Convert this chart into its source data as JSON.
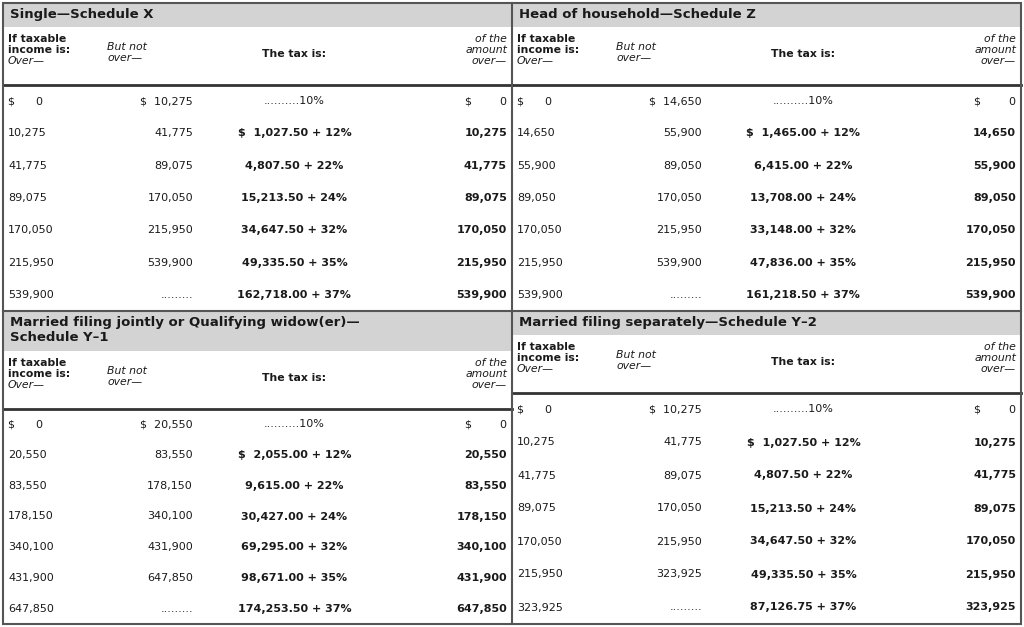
{
  "header_bg": "#d3d3d3",
  "white_bg": "#ffffff",
  "black": "#1a1a1a",
  "border_color": "#555555",
  "sep_color": "#333333",
  "sections": [
    {
      "title": "Single—Schedule X",
      "title_lines": 1,
      "rows": [
        [
          "$      0",
          "$  10,275",
          "..........10%",
          "$        0",
          false
        ],
        [
          "10,275",
          "41,775",
          "$  1,027.50 + 12%",
          "10,275",
          true
        ],
        [
          "41,775",
          "89,075",
          "4,807.50 + 22%",
          "41,775",
          true
        ],
        [
          "89,075",
          "170,050",
          "15,213.50 + 24%",
          "89,075",
          true
        ],
        [
          "170,050",
          "215,950",
          "34,647.50 + 32%",
          "170,050",
          true
        ],
        [
          "215,950",
          "539,900",
          "49,335.50 + 35%",
          "215,950",
          true
        ],
        [
          "539,900",
          ".........",
          "162,718.00 + 37%",
          "539,900",
          true
        ]
      ]
    },
    {
      "title": "Head of household—Schedule Z",
      "title_lines": 1,
      "rows": [
        [
          "$      0",
          "$  14,650",
          "..........10%",
          "$        0",
          false
        ],
        [
          "14,650",
          "55,900",
          "$  1,465.00 + 12%",
          "14,650",
          true
        ],
        [
          "55,900",
          "89,050",
          "6,415.00 + 22%",
          "55,900",
          true
        ],
        [
          "89,050",
          "170,050",
          "13,708.00 + 24%",
          "89,050",
          true
        ],
        [
          "170,050",
          "215,950",
          "33,148.00 + 32%",
          "170,050",
          true
        ],
        [
          "215,950",
          "539,900",
          "47,836.00 + 35%",
          "215,950",
          true
        ],
        [
          "539,900",
          ".........",
          "161,218.50 + 37%",
          "539,900",
          true
        ]
      ]
    },
    {
      "title": "Married filing jointly or Qualifying widow(er)—\nSchedule Y–1",
      "title_lines": 2,
      "rows": [
        [
          "$      0",
          "$  20,550",
          "..........10%",
          "$        0",
          false
        ],
        [
          "20,550",
          "83,550",
          "$  2,055.00 + 12%",
          "20,550",
          true
        ],
        [
          "83,550",
          "178,150",
          "9,615.00 + 22%",
          "83,550",
          true
        ],
        [
          "178,150",
          "340,100",
          "30,427.00 + 24%",
          "178,150",
          true
        ],
        [
          "340,100",
          "431,900",
          "69,295.00 + 32%",
          "340,100",
          true
        ],
        [
          "431,900",
          "647,850",
          "98,671.00 + 35%",
          "431,900",
          true
        ],
        [
          "647,850",
          ".........",
          "174,253.50 + 37%",
          "647,850",
          true
        ]
      ]
    },
    {
      "title": "Married filing separately—Schedule Y–2",
      "title_lines": 1,
      "rows": [
        [
          "$      0",
          "$  10,275",
          "..........10%",
          "$        0",
          false
        ],
        [
          "10,275",
          "41,775",
          "$  1,027.50 + 12%",
          "10,275",
          true
        ],
        [
          "41,775",
          "89,075",
          "4,807.50 + 22%",
          "41,775",
          true
        ],
        [
          "89,075",
          "170,050",
          "15,213.50 + 24%",
          "89,075",
          true
        ],
        [
          "170,050",
          "215,950",
          "34,647.50 + 32%",
          "170,050",
          true
        ],
        [
          "215,950",
          "323,925",
          "49,335.50 + 35%",
          "215,950",
          true
        ],
        [
          "323,925",
          ".........",
          "87,126.75 + 37%",
          "323,925",
          true
        ]
      ]
    }
  ]
}
